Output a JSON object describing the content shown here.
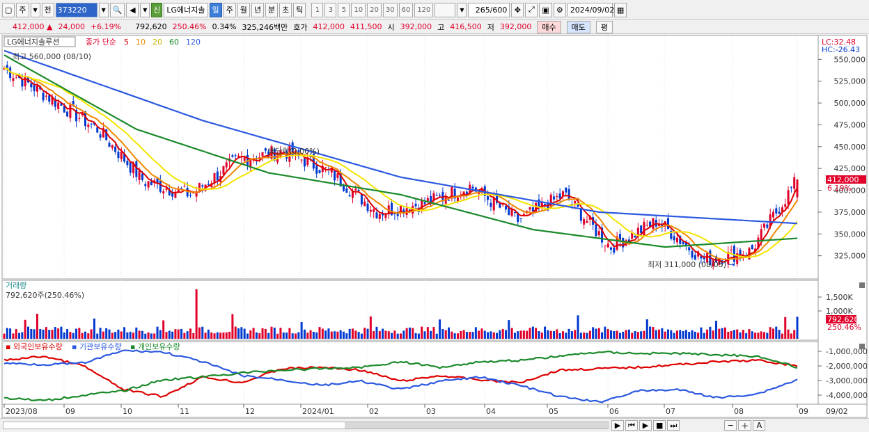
{
  "toolbar": {
    "period_label": "주",
    "prev_label": "전",
    "stock_code": "373220",
    "sin_badge": "신",
    "stock_name": "LG에너지솔",
    "periods": [
      "일",
      "주",
      "월",
      "년",
      "분",
      "초",
      "틱"
    ],
    "active_period": "일",
    "intervals": [
      "1",
      "3",
      "5",
      "10",
      "20",
      "30",
      "60",
      "120"
    ],
    "count": "265",
    "count_total": "/600",
    "date": "2024/09/02"
  },
  "quote": {
    "price": "412,000",
    "change": "24,000",
    "change_pct": "+6.19%",
    "volume": "792,620",
    "volume_ratio": "250.46%",
    "turnover": "0.34%",
    "amount": "325,246백만",
    "hoga_label": "호가",
    "ask": "412,000",
    "bid": "411,500",
    "open_label": "시",
    "open": "392,000",
    "high_label": "고",
    "high": "416,500",
    "low_label": "저",
    "low": "392,000",
    "buy_label": "매수",
    "sell_label": "매도",
    "flat_label": "평"
  },
  "price_panel": {
    "stock_title": "LG에너지솔루션",
    "ma_prefix": "종가 단순",
    "ma_periods": [
      "5",
      "10",
      "20",
      "60",
      "120"
    ],
    "ma_colors": [
      "#dd0000",
      "#ee8800",
      "#f4e400",
      "#1a8a2a",
      "#2b58e0"
    ],
    "high_note": "최고 560,000 (08/10)",
    "low_note": "최저 311,000 (08/05)",
    "dividend_note": "배당락(0.00%)",
    "lc_label": "LC:32.48",
    "hc_label": "HC:-26.43",
    "current_tag": "412,000",
    "current_pct": "6.19%"
  },
  "volume_panel": {
    "title": "거래량",
    "value_label": "792,620주(250.46%)",
    "tag_value": "792,620",
    "tag_pct": "250.46%"
  },
  "holding_panel": {
    "series_labels": [
      "외국인보유수량",
      "기관보유수량",
      "개인보유수량"
    ],
    "series_colors": [
      "#dd0000",
      "#2b58e0",
      "#1a8a2a"
    ]
  },
  "x_axis": {
    "month_labels": [
      "2023/08",
      "09",
      "10",
      "11",
      "12",
      "2024/01",
      "02",
      "03",
      "04",
      "05",
      "06",
      "07",
      "08",
      "09"
    ],
    "end_label": "09/02"
  },
  "chart_data": {
    "type": "candlestick",
    "panels": [
      {
        "name": "price",
        "ylim": [
          300000,
          575000
        ],
        "yticks": [
          325000,
          350000,
          375000,
          400000,
          425000,
          450000,
          475000,
          500000,
          525000,
          550000
        ],
        "ytick_labels": [
          "325,000",
          "350,000",
          "375,000",
          "400,000",
          "425,000",
          "450,000",
          "475,000",
          "500,000",
          "525,000",
          "550,000"
        ],
        "close_anchors": [
          [
            "2023/08",
            540000
          ],
          [
            "2023/09",
            505000
          ],
          [
            "2023/10",
            470000
          ],
          [
            "2023/10 late",
            410000
          ],
          [
            "2023/11 start",
            395000
          ],
          [
            "2023/11 mid",
            435000
          ],
          [
            "2023/12",
            445000
          ],
          [
            "2024/01",
            420000
          ],
          [
            "2024/02 start",
            375000
          ],
          [
            "2024/02",
            385000
          ],
          [
            "2024/03",
            405000
          ],
          [
            "2024/04",
            365000
          ],
          [
            "2024/05",
            395000
          ],
          [
            "2024/06",
            335000
          ],
          [
            "2024/07",
            365000
          ],
          [
            "2024/08 early",
            320000
          ],
          [
            "2024/08 late",
            330000
          ],
          [
            "2024/09/02",
            412000
          ]
        ],
        "ma120_anchors": [
          [
            "2023/08",
            560000
          ],
          [
            "2024/01",
            480000
          ],
          [
            "2024/03",
            415000
          ],
          [
            "2024/07",
            375000
          ],
          [
            "2024/09/02",
            362000
          ]
        ],
        "ma60_anchors": [
          [
            "2023/08",
            555000
          ],
          [
            "2023/11",
            470000
          ],
          [
            "2024/01",
            420000
          ],
          [
            "2024/04",
            395000
          ],
          [
            "2024/07",
            355000
          ],
          [
            "2024/08",
            335000
          ],
          [
            "2024/09/02",
            345000
          ]
        ]
      },
      {
        "name": "volume",
        "yticks_labels": [
          "1,500K",
          "1,000K"
        ],
        "last_value": 792620
      },
      {
        "name": "holdings",
        "ytick_labels": [
          "-1,000,000",
          "-2,000,000",
          "-3,000,000",
          "-4,000,000"
        ]
      }
    ]
  }
}
